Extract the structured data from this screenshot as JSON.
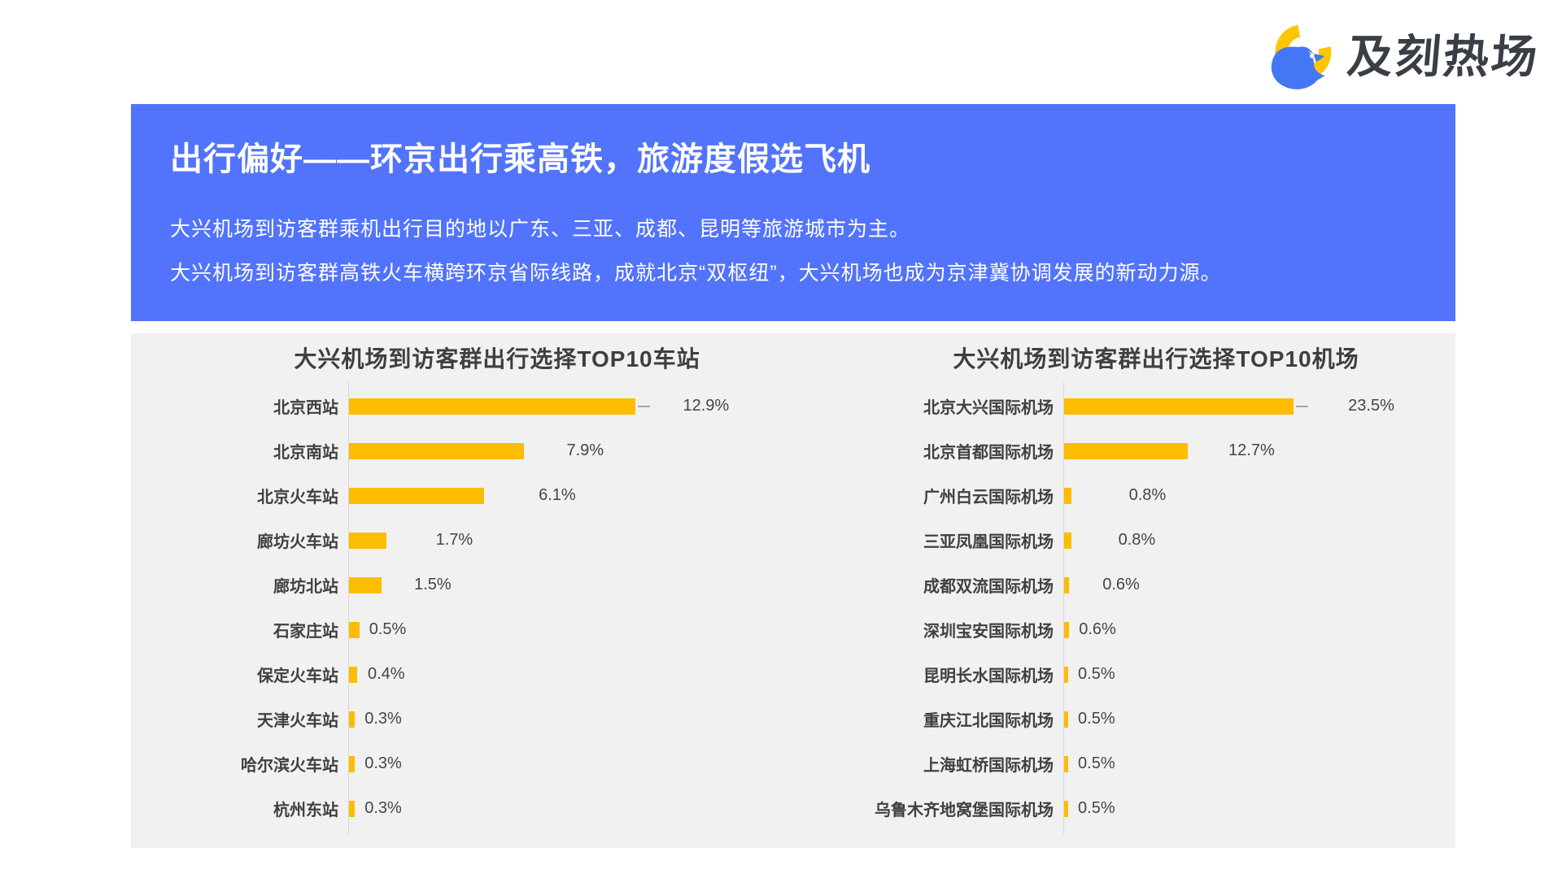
{
  "logo": {
    "brand_text": "及刻热场"
  },
  "header": {
    "title": "出行偏好——环京出行乘高铁，旅游度假选飞机",
    "subtitle_line1": "大兴机场到访客群乘机出行目的地以广东、三亚、成都、昆明等旅游城市为主。",
    "subtitle_line2": "大兴机场到访客群高铁火车横跨环京省际线路，成就北京“双枢纽”，大兴机场也成为京津冀协调发展的新动力源。"
  },
  "colors": {
    "banner_blue": "#5273FB",
    "bar_yellow": "#FCBD00",
    "panel_gray": "#F1F1F1",
    "logo_blue": "#4377F6",
    "logo_yellow": "#FFC502"
  },
  "chart_data": [
    {
      "type": "bar",
      "orientation": "horizontal",
      "title": "大兴机场到访客群出行选择TOP10车站",
      "categories": [
        "北京西站",
        "北京南站",
        "北京火车站",
        "廊坊火车站",
        "廊坊北站",
        "石家庄站",
        "保定火车站",
        "天津火车站",
        "哈尔滨火车站",
        "杭州东站"
      ],
      "values": [
        12.9,
        7.9,
        6.1,
        1.7,
        1.5,
        0.5,
        0.4,
        0.3,
        0.3,
        0.3
      ],
      "value_labels": [
        "12.9%",
        "7.9%",
        "6.1%",
        "1.7%",
        "1.5%",
        "0.5%",
        "0.4%",
        "0.3%",
        "0.3%",
        "0.3%"
      ],
      "xlim": [
        0,
        14
      ],
      "grid": false,
      "legend": "none",
      "bar_color": "#FCBD00"
    },
    {
      "type": "bar",
      "orientation": "horizontal",
      "title": "大兴机场到访客群出行选择TOP10机场",
      "categories": [
        "北京大兴国际机场",
        "北京首都国际机场",
        "广州白云国际机场",
        "三亚凤凰国际机场",
        "成都双流国际机场",
        "深圳宝安国际机场",
        "昆明长水国际机场",
        "重庆江北国际机场",
        "上海虹桥国际机场",
        "乌鲁木齐地窝堡国际机场"
      ],
      "values": [
        23.5,
        12.7,
        0.8,
        0.8,
        0.6,
        0.6,
        0.5,
        0.5,
        0.5,
        0.5
      ],
      "value_labels": [
        "23.5%",
        "12.7%",
        "0.8%",
        "0.8%",
        "0.6%",
        "0.6%",
        "0.5%",
        "0.5%",
        "0.5%",
        "0.5%"
      ],
      "xlim": [
        0,
        27
      ],
      "grid": false,
      "legend": "none",
      "bar_color": "#FCBD00"
    }
  ]
}
